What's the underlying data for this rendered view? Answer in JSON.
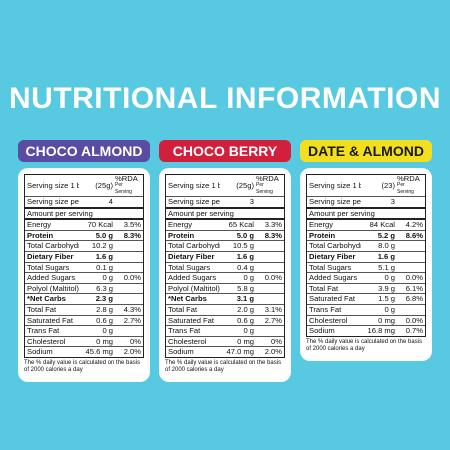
{
  "title": "NUTRITIONAL INFORMATION",
  "background": "#57c9e0",
  "panels": [
    {
      "name": "CHOCO ALMOND",
      "color": "#5a4ba3",
      "text_color": "#ffffff",
      "serving_label": "Serving size 1 bar",
      "serving_amount": "(25g)",
      "rda_head": "%RDA",
      "rda_sub": "Per Serving",
      "pack_label": "Serving size per pack",
      "pack_amount": "4",
      "amount_head": "Amount per serving",
      "rows": [
        {
          "label": "Energy",
          "amount": "70 Kcal",
          "rda": "3.5%"
        },
        {
          "label": "Protein",
          "amount": "5.0 g",
          "rda": "8.3%",
          "bold": true
        },
        {
          "label": "Total Carbohydrate",
          "amount": "10.2 g"
        },
        {
          "label": "Dietary Fiber",
          "amount": "1.6 g",
          "bold": true
        },
        {
          "label": "Total Sugars",
          "amount": "0.1 g"
        },
        {
          "label": "Added Sugars",
          "amount": "0 g",
          "rda": "0.0%"
        },
        {
          "label": "Polyol (Maltitol)",
          "amount": "6.3 g"
        },
        {
          "label": "*Net Carbs",
          "amount": "2.3 g",
          "bold": true
        },
        {
          "label": "Total Fat",
          "amount": "2.8 g",
          "rda": "4.3%"
        },
        {
          "label": "Saturated Fat",
          "amount": "0.6 g",
          "rda": "2.7%"
        },
        {
          "label": "Trans Fat",
          "amount": "0 g"
        },
        {
          "label": "Cholesterol",
          "amount": "0 mg",
          "rda": "0%"
        },
        {
          "label": "Sodium",
          "amount": "45.6 mg",
          "rda": "2.0%"
        }
      ],
      "footnote": "The % daily value is calculated on the basis of 2000 calories a day"
    },
    {
      "name": "CHOCO BERRY",
      "color": "#d21f3c",
      "text_color": "#ffffff",
      "serving_label": "Serving size 1 bar",
      "serving_amount": "(25g)",
      "rda_head": "%RDA",
      "rda_sub": "Per Serving",
      "pack_label": "Serving size per pack",
      "pack_amount": "3",
      "amount_head": "Amount per serving",
      "rows": [
        {
          "label": "Energy",
          "amount": "65 Kcal",
          "rda": "3.3%"
        },
        {
          "label": "Protein",
          "amount": "5.0 g",
          "rda": "8.3%",
          "bold": true
        },
        {
          "label": "Total Carbohydrate",
          "amount": "10.5 g"
        },
        {
          "label": "Dietary Fiber",
          "amount": "1.6 g",
          "bold": true
        },
        {
          "label": "Total Sugars",
          "amount": "0.4 g"
        },
        {
          "label": "Added Sugars",
          "amount": "0 g",
          "rda": "0.0%"
        },
        {
          "label": "Polyol (Maltitol)",
          "amount": "5.8 g"
        },
        {
          "label": "*Net Carbs",
          "amount": "3.1 g",
          "bold": true
        },
        {
          "label": "Total Fat",
          "amount": "2.0 g",
          "rda": "3.1%"
        },
        {
          "label": "Saturated Fat",
          "amount": "0.6 g",
          "rda": "2.7%"
        },
        {
          "label": "Trans Fat",
          "amount": "0 g"
        },
        {
          "label": "Cholesterol",
          "amount": "0 mg",
          "rda": "0%"
        },
        {
          "label": "Sodium",
          "amount": "47.0 mg",
          "rda": "2.0%"
        }
      ],
      "footnote": "The % daily value is calculated on the basis of 2000 calories a day"
    },
    {
      "name": "DATE & ALMOND",
      "color": "#f2df1f",
      "text_color": "#1a1a1a",
      "serving_label": "Serving size 1 bar",
      "serving_amount": "(23)",
      "rda_head": "%RDA",
      "rda_sub": "Per Serving",
      "pack_label": "Serving size per pack",
      "pack_amount": "3",
      "amount_head": "Amount per serving",
      "rows": [
        {
          "label": "Energy",
          "amount": "84 Kcal",
          "rda": "4.2%"
        },
        {
          "label": "Protein",
          "amount": "5.2 g",
          "rda": "8.6%",
          "bold": true
        },
        {
          "label": "Total Carbohydrate",
          "amount": "8.0 g"
        },
        {
          "label": "Dietary Fiber",
          "amount": "1.6 g",
          "bold": true
        },
        {
          "label": "Total Sugars",
          "amount": "5.1 g"
        },
        {
          "label": "Added Sugars",
          "amount": "0 g",
          "rda": "0.0%"
        },
        {
          "label": "Total Fat",
          "amount": "3.9 g",
          "rda": "6.1%"
        },
        {
          "label": "Saturated Fat",
          "amount": "1.5 g",
          "rda": "6.8%"
        },
        {
          "label": "Trans Fat",
          "amount": "0 g"
        },
        {
          "label": "Cholesterol",
          "amount": "0 mg",
          "rda": "0.0%"
        },
        {
          "label": "Sodium",
          "amount": "16.8 mg",
          "rda": "0.7%"
        }
      ],
      "footnote": "The % daily value is calculated on the basis of 2000 calories a day"
    }
  ]
}
